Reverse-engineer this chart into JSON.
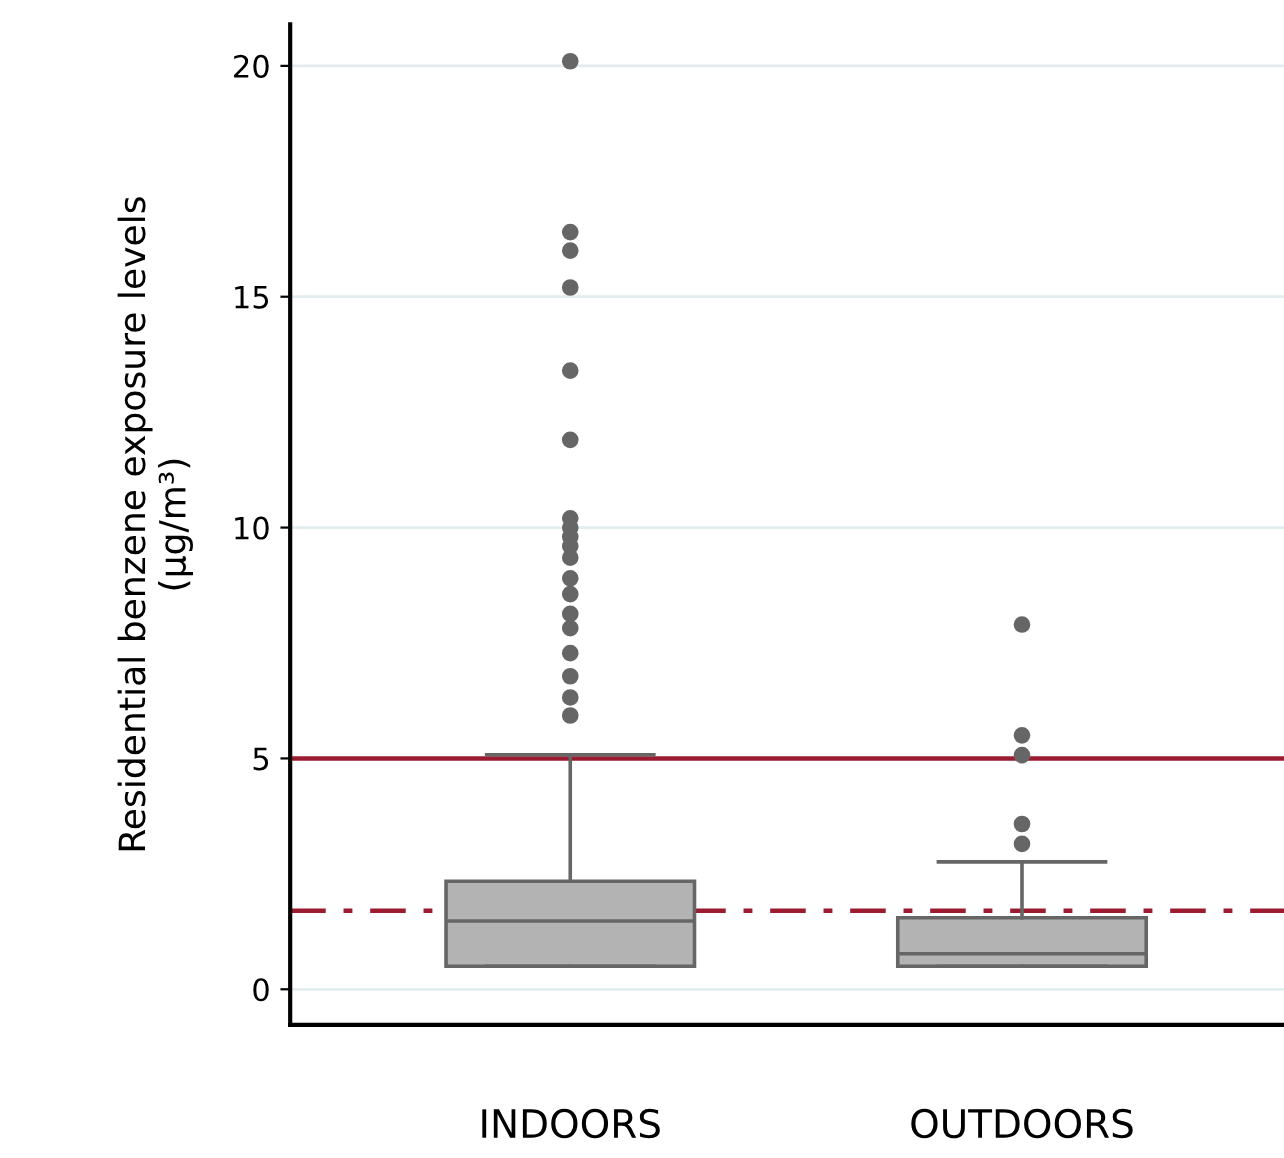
{
  "chart_data": {
    "type": "box",
    "ylabel": "Residential benzene exposure levels\n(µg/m³)",
    "categories": [
      "INDOORS",
      "OUTDOORS"
    ],
    "boxes": [
      {
        "low": 0.5,
        "q1": 0.5,
        "median": 1.48,
        "q3": 2.34,
        "high": 5.08,
        "outliers": [
          5.93,
          6.32,
          6.78,
          7.28,
          7.82,
          8.13,
          8.56,
          8.9,
          9.35,
          9.6,
          9.8,
          10.0,
          10.2,
          11.9,
          13.4,
          15.2,
          16.0,
          16.4,
          20.1
        ]
      },
      {
        "low": 0.5,
        "q1": 0.5,
        "median": 0.77,
        "q3": 1.55,
        "high": 2.76,
        "outliers": [
          3.15,
          3.58,
          5.07,
          5.5,
          7.9
        ]
      }
    ],
    "color": "#b3b3b3",
    "ylim": [
      -0.77,
      20.9
    ],
    "yticks": [
      0,
      5,
      10,
      15,
      20
    ],
    "grid": "y",
    "ref_lines": [
      {
        "axis": "y",
        "value": 5,
        "color": "#9b1b30",
        "line_style": "solid"
      },
      {
        "axis": "y",
        "value": 1.7,
        "color": "#9b1b30",
        "line_style": "dashdot"
      }
    ]
  }
}
